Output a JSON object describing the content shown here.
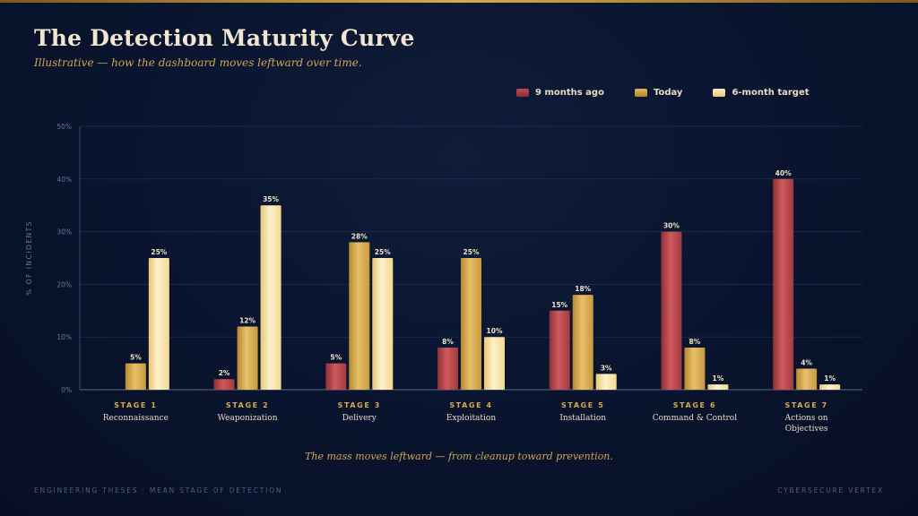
{
  "header": {
    "title": "The Detection Maturity Curve",
    "subtitle": "Illustrative — how the dashboard moves leftward over time."
  },
  "footnote": "The mass moves leftward — from cleanup toward prevention.",
  "footer": {
    "left": "ENGINEERING THESES · MEAN STAGE OF DETECTION",
    "right": "CYBERSECURE VERTEX"
  },
  "colors": {
    "series_0": "#b0404a",
    "series_1": "#d4a64a",
    "series_2": "#f6e3a8",
    "accent": "#d3a552"
  },
  "chart_data": {
    "type": "bar",
    "title": "The Detection Maturity Curve",
    "ylabel": "% OF INCIDENTS",
    "xlabel": "",
    "ylim": [
      0,
      50
    ],
    "yticks": [
      0,
      10,
      20,
      30,
      40,
      50
    ],
    "ytick_labels": [
      "0%",
      "10%",
      "20%",
      "30%",
      "40%",
      "50%"
    ],
    "grid": true,
    "legend_position": "top-right",
    "categories": [
      {
        "stage": "STAGE 1",
        "name": "Reconnaissance"
      },
      {
        "stage": "STAGE 2",
        "name": "Weaponization"
      },
      {
        "stage": "STAGE 3",
        "name": "Delivery"
      },
      {
        "stage": "STAGE 4",
        "name": "Exploitation"
      },
      {
        "stage": "STAGE 5",
        "name": "Installation"
      },
      {
        "stage": "STAGE 6",
        "name": "Command & Control"
      },
      {
        "stage": "STAGE 7",
        "name": "Actions on Objectives"
      }
    ],
    "series": [
      {
        "name": "9 months ago",
        "values": [
          0,
          2,
          5,
          8,
          15,
          30,
          40
        ]
      },
      {
        "name": "Today",
        "values": [
          5,
          12,
          28,
          25,
          18,
          8,
          4
        ]
      },
      {
        "name": "6-month target",
        "values": [
          25,
          35,
          25,
          10,
          3,
          1,
          1
        ]
      }
    ]
  }
}
